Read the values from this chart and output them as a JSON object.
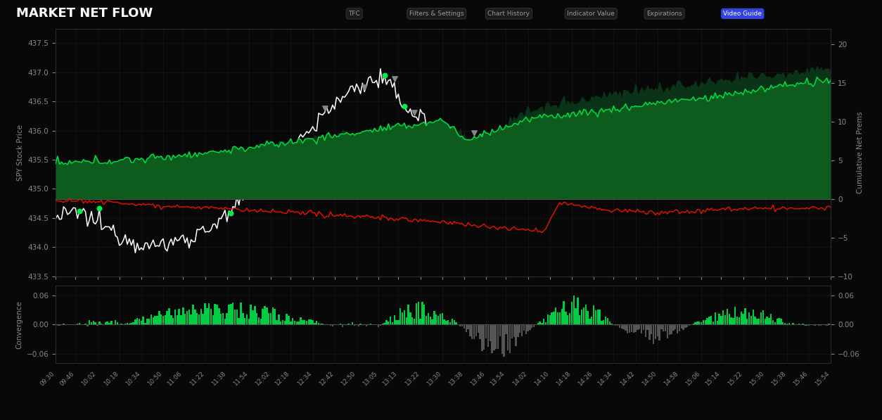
{
  "title": "MARKET NET FLOW",
  "bg_color": "#080808",
  "left_ylim": [
    433.5,
    437.75
  ],
  "right_ylim": [
    -10,
    22
  ],
  "conv_ylim": [
    -0.08,
    0.08
  ],
  "left_ylabel": "SPY Stock Price",
  "right_ylabel": "Cumulative Net Prems",
  "conv_ylabel": "Convergence",
  "grid_color": "#1e1e1e",
  "tick_color": "#888888",
  "line_color_spy": "#ffffff",
  "fill_calls_color": "#0d5c1e",
  "fill_algo_color": "#0a3318",
  "line_calls_color": "#00dd44",
  "line_puts_color": "#dd1100",
  "conv_pos_color": "#00cc44",
  "conv_neg_color": "#555555",
  "zero_line_color": "#444444",
  "nav_items": [
    "TFC",
    "Filters & Settings",
    "Chart History",
    "Indicator Value",
    "Expirations",
    "Video Guide"
  ],
  "time_labels": [
    "09:30",
    "09:46",
    "10:02",
    "10:18",
    "10:34",
    "10:50",
    "11:06",
    "11:22",
    "11:38",
    "11:54",
    "12:02",
    "12:18",
    "12:34",
    "12:42",
    "12:50",
    "13:05",
    "13:13",
    "13:22",
    "13:30",
    "13:38",
    "13:46",
    "13:54",
    "14:02",
    "14:10",
    "14:18",
    "14:26",
    "14:34",
    "14:42",
    "14:50",
    "14:58",
    "15:06",
    "15:14",
    "15:22",
    "15:30",
    "15:38",
    "15:46",
    "15:54"
  ],
  "left_yticks": [
    433.5,
    434.0,
    434.5,
    435.0,
    435.5,
    436.0,
    436.5,
    437.0,
    437.5
  ],
  "right_yticks": [
    -10,
    -5,
    0,
    5,
    10,
    15,
    20
  ],
  "conv_yticks": [
    -0.06,
    0.0,
    0.06
  ]
}
